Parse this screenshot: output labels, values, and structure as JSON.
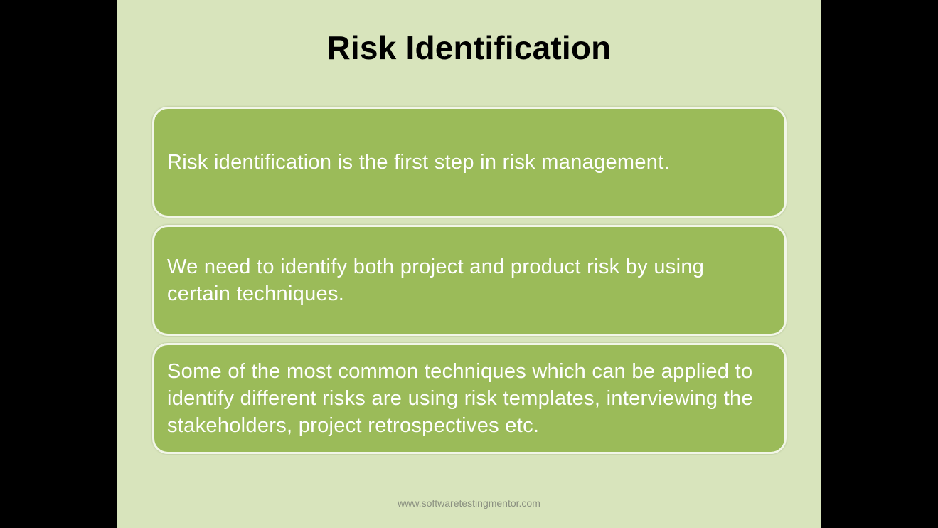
{
  "slide": {
    "title": "Risk Identification",
    "boxes": [
      {
        "text": "Risk identification is the first step in risk management."
      },
      {
        "text": "We need to identify both project and product risk by using certain techniques."
      },
      {
        "text": "Some of the most common techniques which can be applied to identify different risks are using risk templates, interviewing the stakeholders, project retrospectives etc."
      }
    ],
    "footer": "www.softwaretestingmentor.com"
  },
  "colors": {
    "slide_background": "#d8e4bc",
    "box_fill": "#9bbb59",
    "box_border": "#f2f6e8",
    "letterbox": "#000000"
  }
}
